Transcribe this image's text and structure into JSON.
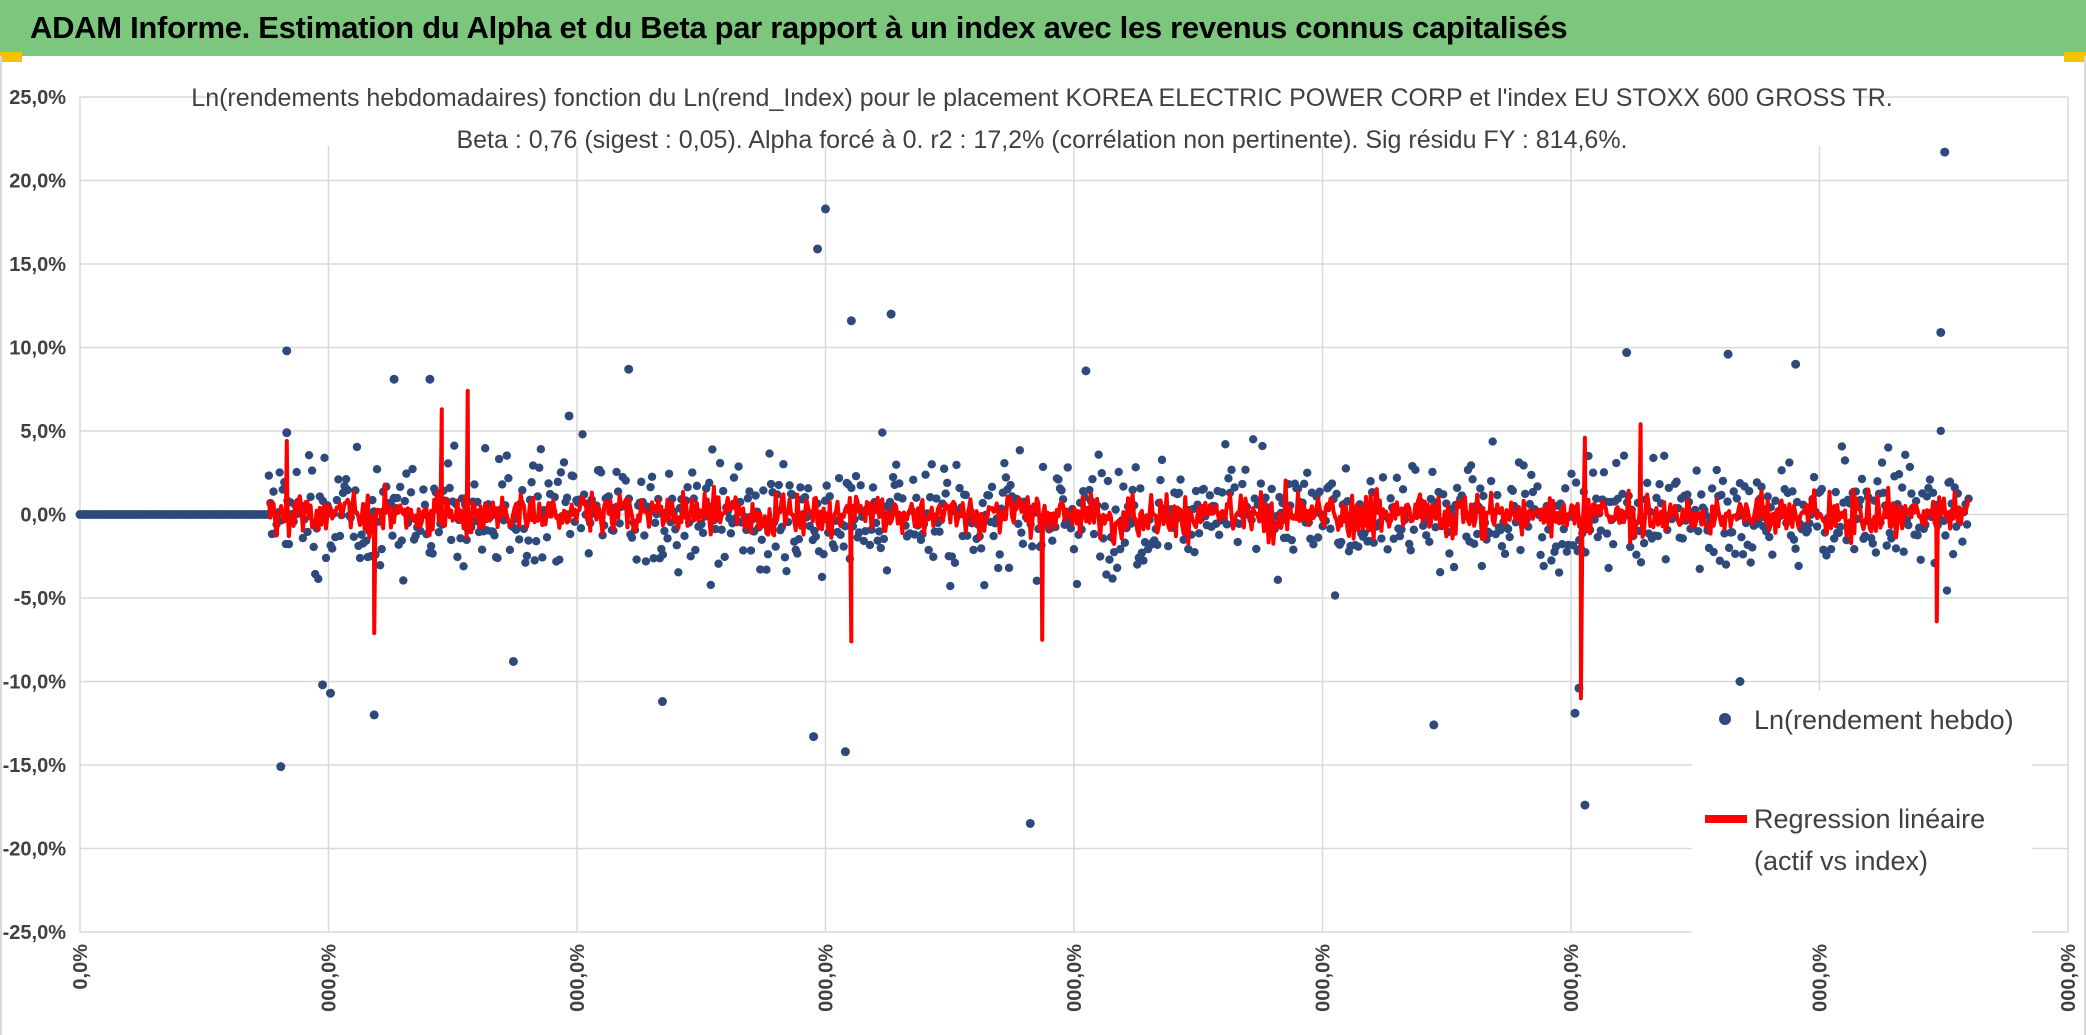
{
  "header": {
    "title": "ADAM Informe. Estimation du Alpha et du Beta par rapport à un index avec les revenus connus capitalisés"
  },
  "colors": {
    "banner": "#7dc67e",
    "scatter": "#2e4a7d",
    "regression": "#ff0000",
    "grid": "#d9d9d9"
  },
  "chart_data": {
    "type": "scatter",
    "title_line1": "Ln(rendements hebdomadaires) fonction du Ln(rend_Index) pour le placement KOREA ELECTRIC POWER CORP et l'index EU STOXX 600 GROSS TR.",
    "title_line2": "Beta : 0,76 (sigest : 0,05). Alpha forcé à 0. r2 : 17,2% (corrélation non pertinente). Sig résidu FY : 814,6%.",
    "y_ticks": [
      "25,0%",
      "20,0%",
      "15,0%",
      "10,0%",
      "5,0%",
      "0,0%",
      "-5,0%",
      "-10,0%",
      "-15,0%",
      "-20,0%",
      "-25,0%"
    ],
    "x_ticks": [
      "0,0%",
      "000,0%",
      "000,0%",
      "000,0%",
      "000,0%",
      "000,0%",
      "000,0%",
      "000,0%",
      "000,0%"
    ],
    "ylim": [
      -25,
      25
    ],
    "grid": true,
    "legend_position": "bottom-right",
    "series": [
      {
        "name": "Ln(rendement hebdo)",
        "marker": "dot"
      },
      {
        "name": "Regression linéaire (actif vs index)",
        "name_line1": "Regression linéaire",
        "name_line2": "(actif vs index)",
        "marker": "line"
      }
    ],
    "x_range": [
      0,
      1
    ],
    "flat_zero_until": 0.095,
    "data_end": 0.95,
    "sample_points": [
      {
        "x": 0.101,
        "y": -15.1
      },
      {
        "x": 0.104,
        "y": 9.8
      },
      {
        "x": 0.104,
        "y": 4.9
      },
      {
        "x": 0.122,
        "y": -10.2
      },
      {
        "x": 0.126,
        "y": -10.7
      },
      {
        "x": 0.148,
        "y": -12.0
      },
      {
        "x": 0.218,
        "y": -8.8
      },
      {
        "x": 0.293,
        "y": -11.2
      },
      {
        "x": 0.276,
        "y": 8.7
      },
      {
        "x": 0.371,
        "y": 15.9
      },
      {
        "x": 0.375,
        "y": 18.3
      },
      {
        "x": 0.369,
        "y": -13.3
      },
      {
        "x": 0.385,
        "y": -14.2
      },
      {
        "x": 0.408,
        "y": 12.0
      },
      {
        "x": 0.388,
        "y": 11.6
      },
      {
        "x": 0.478,
        "y": -18.5
      },
      {
        "x": 0.506,
        "y": 8.6
      },
      {
        "x": 0.681,
        "y": -12.6
      },
      {
        "x": 0.757,
        "y": -17.4
      },
      {
        "x": 0.752,
        "y": -11.9
      },
      {
        "x": 0.754,
        "y": -10.4
      },
      {
        "x": 0.778,
        "y": 9.7
      },
      {
        "x": 0.829,
        "y": 9.6
      },
      {
        "x": 0.835,
        "y": -10.0
      },
      {
        "x": 0.863,
        "y": 9.0
      },
      {
        "x": 0.938,
        "y": 21.7
      },
      {
        "x": 0.936,
        "y": 10.9
      },
      {
        "x": 0.158,
        "y": 8.1
      },
      {
        "x": 0.176,
        "y": 8.1
      },
      {
        "x": 0.246,
        "y": 5.9
      }
    ],
    "regression_spikes": [
      {
        "x": 0.104,
        "y": 4.4
      },
      {
        "x": 0.195,
        "y": 7.4
      },
      {
        "x": 0.182,
        "y": 6.3
      },
      {
        "x": 0.148,
        "y": -7.1
      },
      {
        "x": 0.388,
        "y": -7.6
      },
      {
        "x": 0.484,
        "y": -7.5
      },
      {
        "x": 0.755,
        "y": -11.0
      },
      {
        "x": 0.757,
        "y": 4.6
      },
      {
        "x": 0.785,
        "y": 5.4
      },
      {
        "x": 0.934,
        "y": -6.4
      }
    ]
  }
}
